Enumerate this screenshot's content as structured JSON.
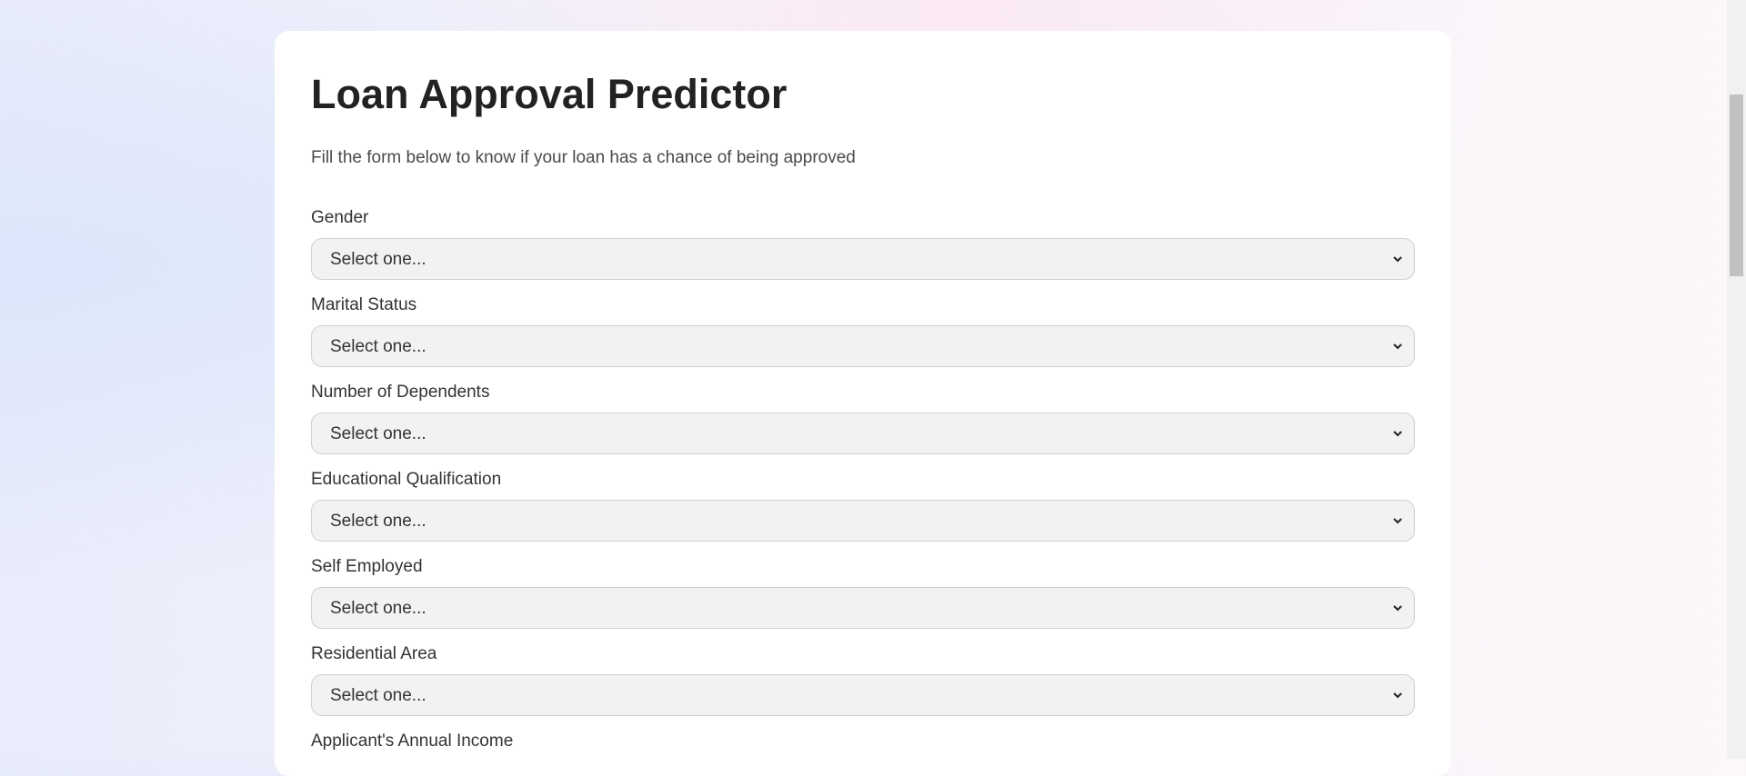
{
  "header": {
    "title": "Loan Approval Predictor",
    "subtitle": "Fill the form below to know if your loan has a chance of being approved"
  },
  "fields": [
    {
      "label": "Gender",
      "placeholder": "Select one..."
    },
    {
      "label": "Marital Status",
      "placeholder": "Select one..."
    },
    {
      "label": "Number of Dependents",
      "placeholder": "Select one..."
    },
    {
      "label": "Educational Qualification",
      "placeholder": "Select one..."
    },
    {
      "label": "Self Employed",
      "placeholder": "Select one..."
    },
    {
      "label": "Residential Area",
      "placeholder": "Select one..."
    },
    {
      "label": "Applicant's Annual Income"
    }
  ]
}
